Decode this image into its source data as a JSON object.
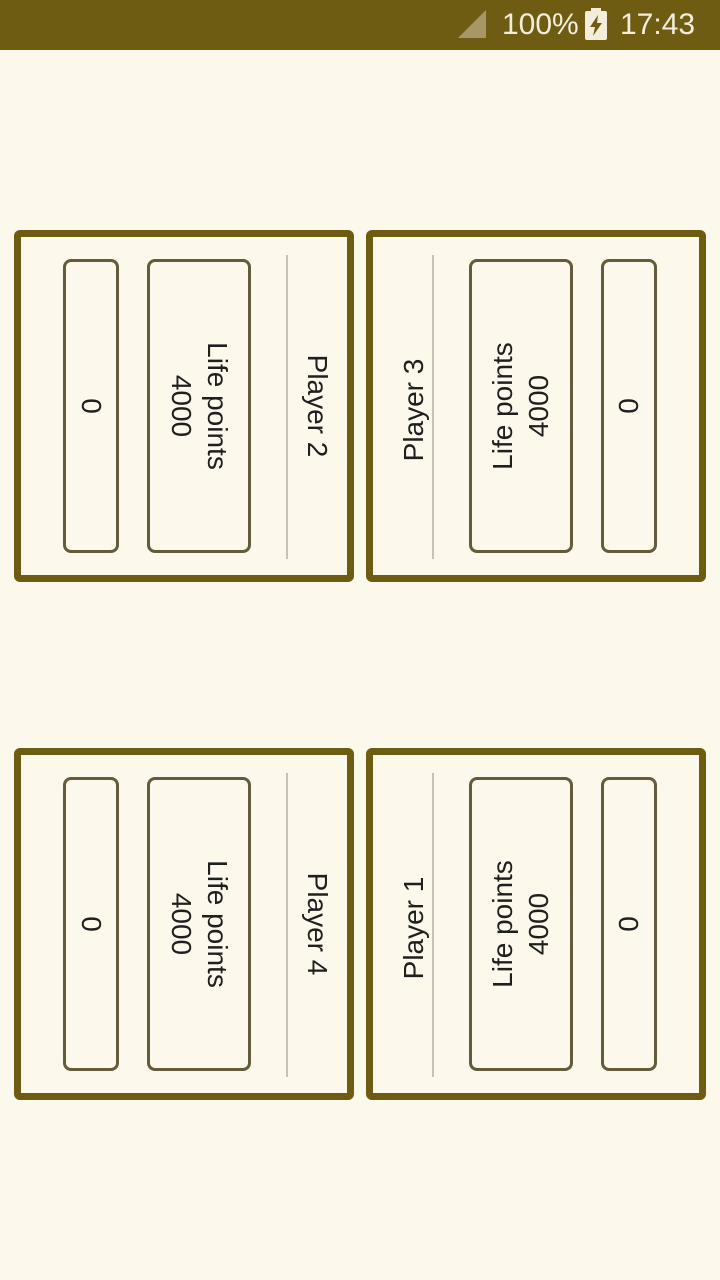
{
  "status_bar": {
    "battery": "100%",
    "time": "17:43",
    "icons": [
      "signal-icon",
      "battery-charging-icon"
    ]
  },
  "colors": {
    "accent": "#6e5c12",
    "background": "#fdf8ec",
    "box_border": "#645a3c"
  },
  "players": {
    "p1": {
      "name": "Player 1",
      "life_label": "Life points",
      "life_value": "4000",
      "counter": "0"
    },
    "p2": {
      "name": "Player 2",
      "life_label": "Life points",
      "life_value": "4000",
      "counter": "0"
    },
    "p3": {
      "name": "Player 3",
      "life_label": "Life points",
      "life_value": "4000",
      "counter": "0"
    },
    "p4": {
      "name": "Player 4",
      "life_label": "Life points",
      "life_value": "4000",
      "counter": "0"
    }
  }
}
